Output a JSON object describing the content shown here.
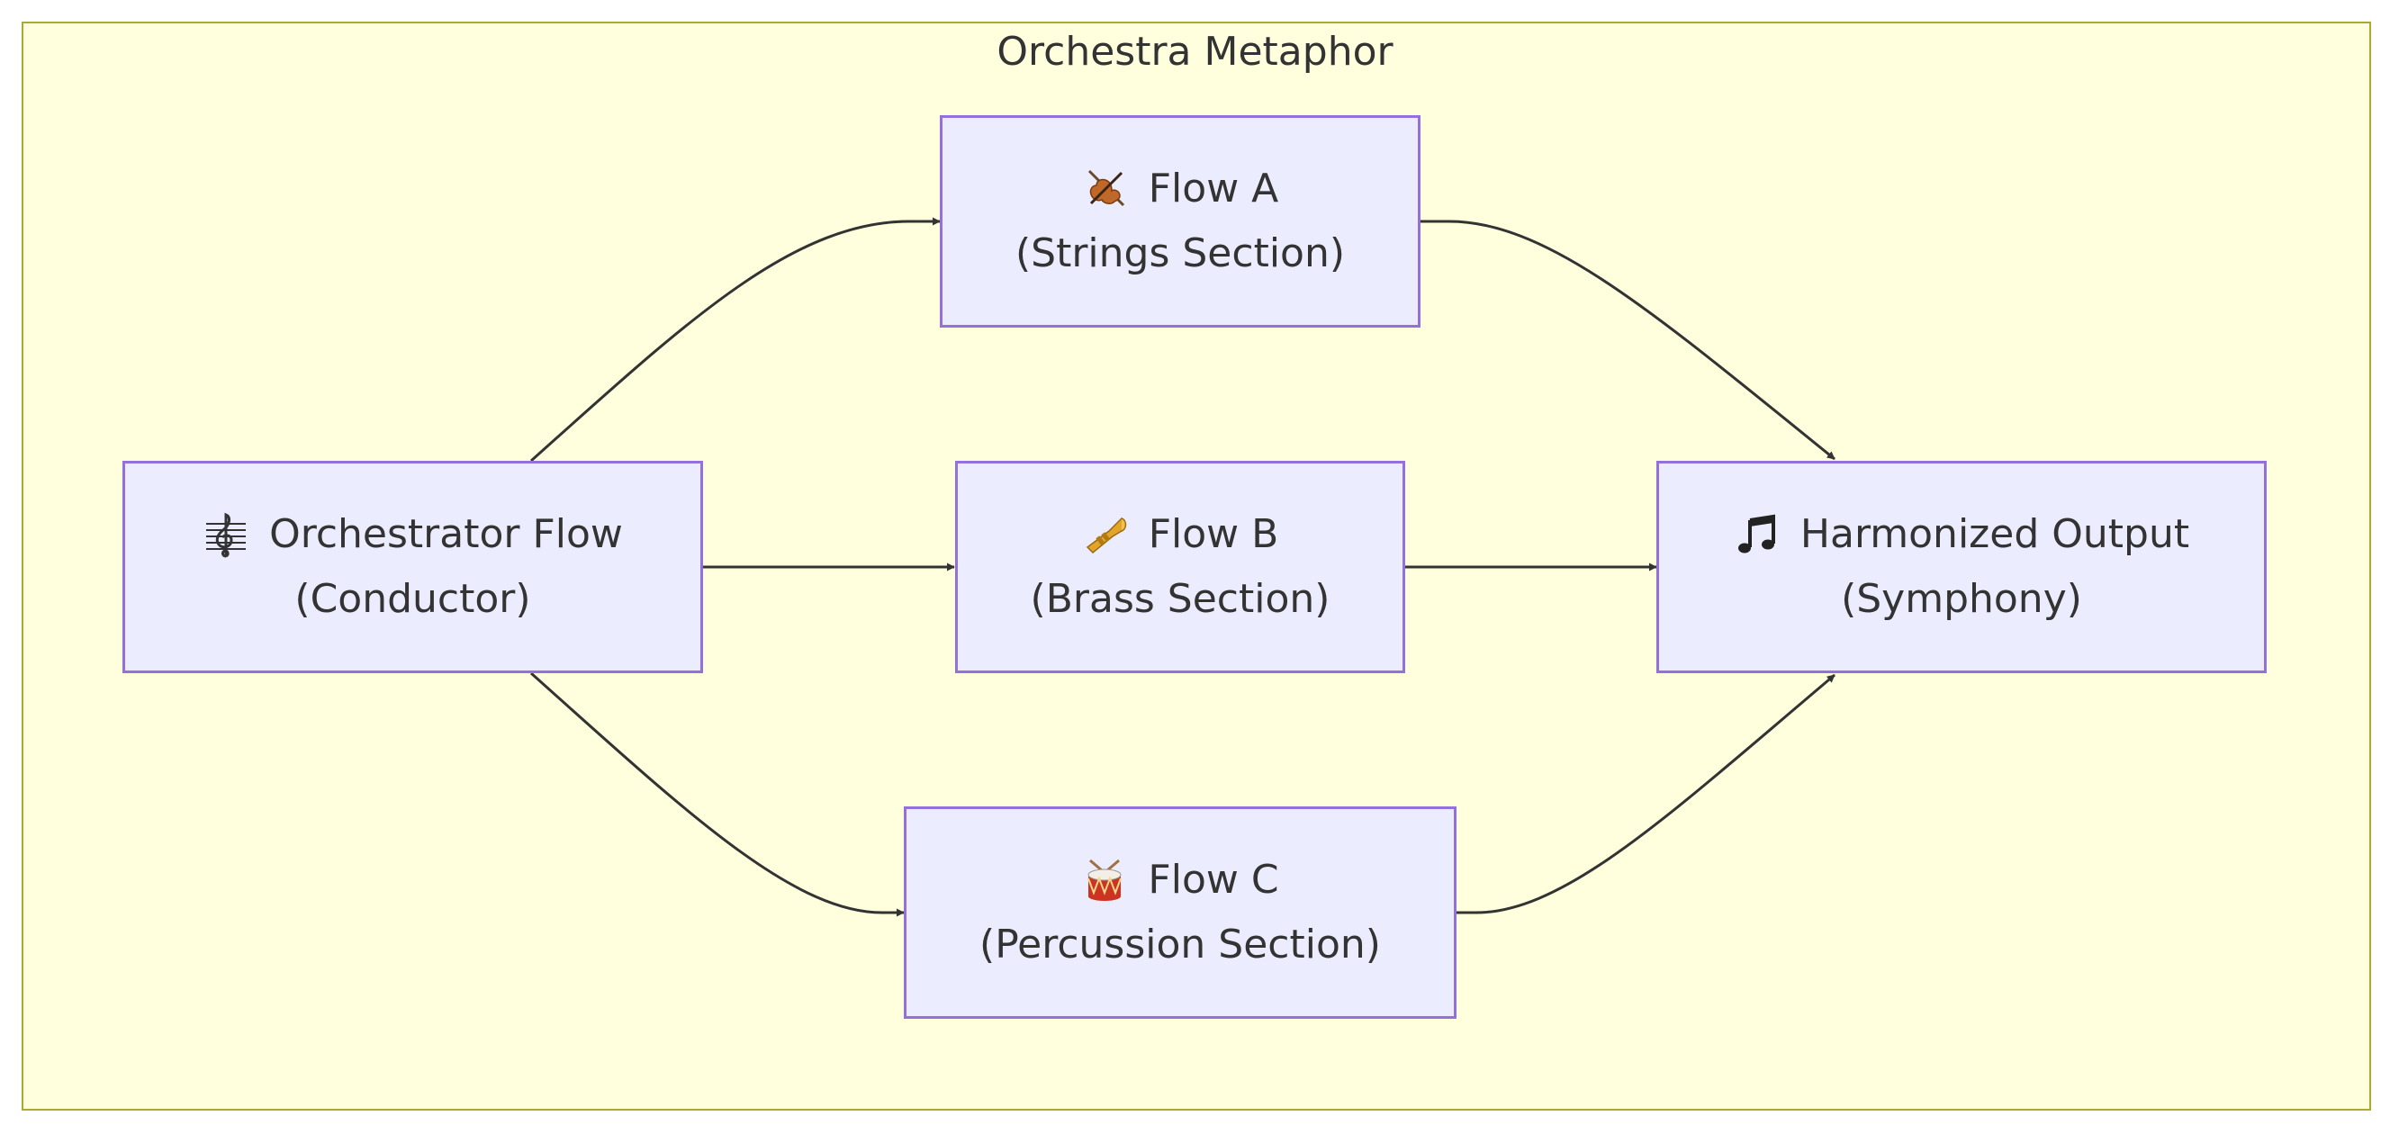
{
  "diagram": {
    "title": "Orchestra Metaphor",
    "nodes": {
      "conductor": {
        "icon": "treble-clef-icon",
        "label": "Orchestrator Flow",
        "sublabel": "(Conductor)"
      },
      "flow_a": {
        "icon": "violin-icon",
        "label": "Flow A",
        "sublabel": "(Strings Section)"
      },
      "flow_b": {
        "icon": "trumpet-icon",
        "label": "Flow B",
        "sublabel": "(Brass Section)"
      },
      "flow_c": {
        "icon": "drum-icon",
        "label": "Flow C",
        "sublabel": "(Percussion Section)"
      },
      "output": {
        "icon": "musical-note-icon",
        "label": "Harmonized Output",
        "sublabel": "(Symphony)"
      }
    },
    "edges": [
      {
        "from": "conductor",
        "to": "flow_a"
      },
      {
        "from": "conductor",
        "to": "flow_b"
      },
      {
        "from": "conductor",
        "to": "flow_c"
      },
      {
        "from": "flow_a",
        "to": "output"
      },
      {
        "from": "flow_b",
        "to": "output"
      },
      {
        "from": "flow_c",
        "to": "output"
      }
    ],
    "colors": {
      "cluster_fill": "#ffffde",
      "cluster_border": "#aaaa33",
      "node_fill": "#ececff",
      "node_border": "#9370db",
      "edge": "#333333",
      "text": "#333333"
    }
  }
}
